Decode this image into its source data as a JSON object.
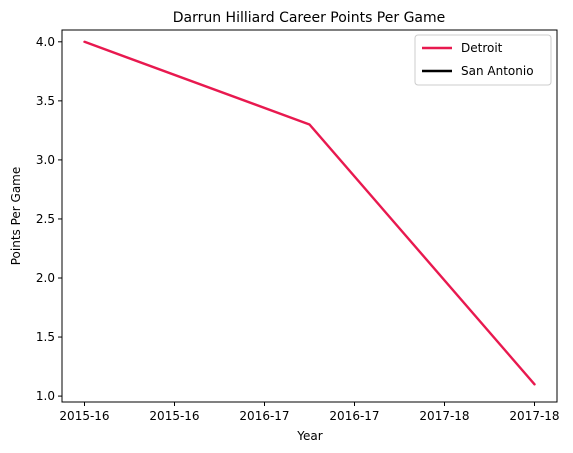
{
  "chart_data": {
    "type": "line",
    "title": "Darrun Hilliard Career Points Per Game",
    "xlabel": "Year",
    "ylabel": "Points Per Game",
    "x_tick_labels": [
      "2015-16",
      "2015-16",
      "2016-17",
      "2016-17",
      "2017-18",
      "2017-18"
    ],
    "y_ticks": [
      1.0,
      1.5,
      2.0,
      2.5,
      3.0,
      3.5,
      4.0
    ],
    "ylim": [
      0.95,
      4.1
    ],
    "grid": false,
    "legend_position": "top-right",
    "series": [
      {
        "name": "Detroit",
        "color": "#e8194f",
        "x": [
          0,
          2.5,
          5
        ],
        "y": [
          4.0,
          3.3,
          1.1
        ]
      },
      {
        "name": "San Antonio",
        "color": "#000000",
        "x": [],
        "y": []
      }
    ]
  }
}
